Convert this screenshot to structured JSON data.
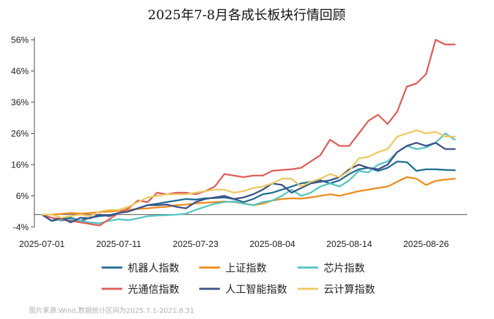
{
  "chart_data": {
    "type": "line",
    "title": "2025年7-8月各成长板块行情回顾",
    "source_note": "图片来源:Wind,数据统计区间为2025.7.1-2021.8.31",
    "ylim": [
      -4,
      56
    ],
    "yticks": [
      -4,
      6,
      16,
      26,
      36,
      46,
      56
    ],
    "yticks_labels": [
      "-4%",
      "6%",
      "16%",
      "26%",
      "36%",
      "46%",
      "56%"
    ],
    "x": [
      "2025-07-01",
      "2025-07-02",
      "2025-07-03",
      "2025-07-04",
      "2025-07-07",
      "2025-07-08",
      "2025-07-09",
      "2025-07-10",
      "2025-07-11",
      "2025-07-14",
      "2025-07-15",
      "2025-07-16",
      "2025-07-17",
      "2025-07-18",
      "2025-07-21",
      "2025-07-22",
      "2025-07-23",
      "2025-07-24",
      "2025-07-25",
      "2025-07-28",
      "2025-07-29",
      "2025-07-30",
      "2025-07-31",
      "2025-08-01",
      "2025-08-04",
      "2025-08-05",
      "2025-08-06",
      "2025-08-07",
      "2025-08-08",
      "2025-08-11",
      "2025-08-12",
      "2025-08-13",
      "2025-08-14",
      "2025-08-15",
      "2025-08-18",
      "2025-08-19",
      "2025-08-20",
      "2025-08-21",
      "2025-08-22",
      "2025-08-25",
      "2025-08-26",
      "2025-08-27",
      "2025-08-28",
      "2025-08-29"
    ],
    "xtick_labels": [
      "2025-07-01",
      "2025-07-11",
      "2025-07-23",
      "2025-08-04",
      "2025-08-14",
      "2025-08-26"
    ],
    "series": [
      {
        "name": "机器人指数",
        "color": "#1f6c93",
        "values": [
          0,
          -2,
          -1.5,
          -1,
          -2,
          -1,
          -0.5,
          -0.2,
          0.5,
          1,
          2,
          3,
          3.5,
          4,
          4.5,
          5,
          4.8,
          5.2,
          5.3,
          5.5,
          5,
          4,
          5,
          6.5,
          7,
          8,
          9,
          10,
          10.5,
          11,
          10,
          11,
          13,
          14.5,
          15,
          14,
          15,
          17,
          16.8,
          14,
          14.5,
          14.5,
          14.3,
          14.2
        ]
      },
      {
        "name": "上证指数",
        "color": "#ee8c1c",
        "values": [
          0,
          0,
          0.2,
          0.5,
          0.3,
          0.5,
          0.8,
          1,
          1.2,
          1.5,
          1.8,
          2,
          2.3,
          2.5,
          3,
          3.2,
          3.6,
          3.8,
          4,
          4.2,
          4,
          3.6,
          3,
          3.5,
          4.5,
          5,
          5.2,
          5.1,
          5.5,
          6,
          6.5,
          6,
          6.8,
          7.5,
          8,
          8.5,
          9,
          10.5,
          12,
          11.5,
          9.5,
          10.8,
          11.2,
          11.5
        ]
      },
      {
        "name": "芯片指数",
        "color": "#53c5c3",
        "values": [
          0,
          -1,
          -2,
          -1.5,
          -2,
          -2.5,
          -2.8,
          -2,
          -1.5,
          -1.8,
          -1.2,
          -0.5,
          -0.3,
          -0.2,
          0,
          0.3,
          1.5,
          2.5,
          3.5,
          4,
          4.2,
          3.5,
          3,
          4,
          4.5,
          6,
          8,
          6,
          7,
          9,
          10,
          9,
          11,
          14,
          13.5,
          16,
          17,
          20,
          22,
          21,
          21.5,
          23,
          26,
          24
        ]
      },
      {
        "name": "光通信指数",
        "color": "#de5f5a",
        "values": [
          0,
          -1,
          -1.5,
          -2,
          -2.5,
          -3,
          -3.5,
          -1.5,
          0.5,
          2,
          4.5,
          4,
          7,
          6.5,
          7,
          7,
          6.5,
          7.5,
          9,
          13,
          12.5,
          12,
          12.5,
          12.5,
          14,
          14.3,
          14.5,
          15,
          17,
          19,
          24,
          22,
          22,
          26,
          30,
          32,
          29,
          33,
          41,
          42,
          45,
          56,
          54.5,
          54.5
        ]
      },
      {
        "name": "人工智能指数",
        "color": "#3e5289",
        "values": [
          0,
          -2,
          -1,
          -2.5,
          -1,
          -1.2,
          0,
          -0.5,
          0.5,
          1,
          2,
          3,
          3,
          3.2,
          2.5,
          2,
          4,
          5,
          5.5,
          6,
          5,
          5.5,
          6.5,
          8,
          10,
          9.5,
          7,
          8.5,
          10,
          10.5,
          11,
          12,
          14.5,
          16,
          15,
          14.5,
          16,
          20,
          22,
          23,
          22,
          23,
          21,
          21
        ]
      },
      {
        "name": "云计算指数",
        "color": "#ecc963",
        "values": [
          0,
          0,
          -1,
          -0.5,
          0,
          -0.5,
          1,
          1.5,
          1.5,
          2.5,
          4,
          5.5,
          6,
          6.5,
          6.5,
          6.5,
          7,
          7.5,
          8,
          8,
          7,
          7.5,
          8.5,
          9,
          10,
          11.5,
          11.5,
          9,
          10.5,
          11.5,
          13,
          12,
          14,
          18,
          18.5,
          20,
          21,
          25,
          26,
          27,
          26,
          26.5,
          25,
          25
        ]
      }
    ],
    "legend": {
      "placement": "bottom",
      "columns": 3
    },
    "grid": false
  }
}
